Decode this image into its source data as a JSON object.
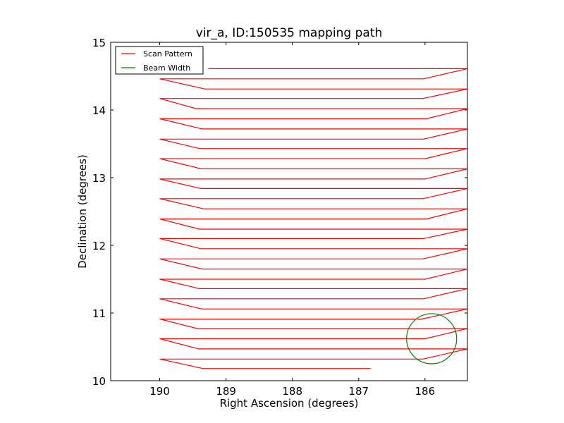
{
  "chart_data": {
    "type": "line",
    "title": "vir_a, ID:150535 mapping path",
    "xlabel": "Right Ascension (degrees)",
    "ylabel": "Declination (degrees)",
    "xlim": [
      190.74,
      185.36
    ],
    "ylim": [
      10,
      15
    ],
    "x_inverted": true,
    "grid": false,
    "xticks": [
      190,
      189,
      188,
      187,
      186
    ],
    "xtick_labels": [
      "190",
      "189",
      "188",
      "187",
      "186"
    ],
    "yticks": [
      10,
      11,
      12,
      13,
      14,
      15
    ],
    "ytick_labels": [
      "10",
      "11",
      "12",
      "13",
      "14",
      "15"
    ],
    "legend": {
      "placement": "top-left",
      "entries": [
        {
          "label": "Scan Pattern",
          "color": "#ff0000"
        },
        {
          "label": "Beam Width",
          "color": "#008000"
        }
      ]
    },
    "series": [
      {
        "name": "Scan Pattern",
        "color": "#ff0000",
        "row_dec": [
          14.61,
          14.46,
          14.31,
          14.17,
          14.02,
          13.87,
          13.72,
          13.57,
          13.43,
          13.28,
          13.13,
          12.98,
          12.84,
          12.69,
          12.54,
          12.39,
          12.24,
          12.1,
          11.95,
          11.8,
          11.65,
          11.5,
          11.36,
          11.21,
          11.06,
          10.91,
          10.77,
          10.62,
          10.47,
          10.32,
          10.18
        ],
        "left_turn_ra": 190.0,
        "right_turn_ra": 185.36,
        "row_start_ra": [
          189.27,
          186.02,
          189.32,
          186.03,
          189.45,
          185.98,
          189.36,
          186.02,
          189.4,
          186.0,
          189.37,
          186.0,
          189.38,
          186.03,
          189.34,
          185.98,
          189.4,
          186.02,
          189.38,
          186.03,
          189.36,
          186.0,
          189.4,
          186.02,
          189.37,
          186.05,
          189.43,
          186.0,
          189.41,
          186.03,
          189.35
        ],
        "end_ra": 186.82
      },
      {
        "name": "Beam Width",
        "color": "#008000",
        "type": "circle",
        "center_ra": 185.9,
        "center_dec": 10.62,
        "radius_deg": 0.37
      }
    ]
  }
}
